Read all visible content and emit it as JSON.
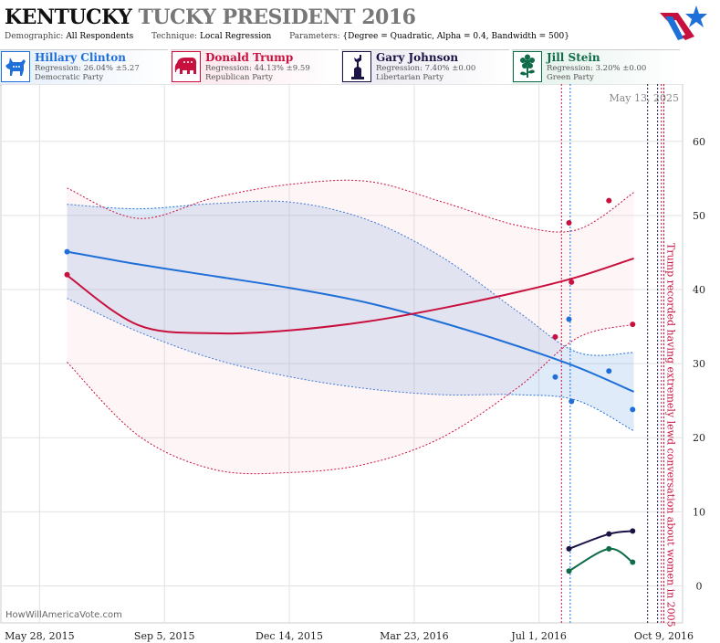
{
  "header": {
    "title_part1": "KENTUCKY",
    "title_part2": "TUCKY PRESIDENT 2016",
    "demographic_label": "Demographic:",
    "demographic_value": "All Respondents",
    "technique_label": "Technique:",
    "technique_value": "Local Regression",
    "parameters_label": "Parameters:",
    "parameters_value": "{Degree = Quadratic, Alpha = 0.4, Bandwidth = 500}"
  },
  "candidates": [
    {
      "name": "Hillary Clinton",
      "regression": "Regression: 26.04% ±5.27",
      "party": "Democratic Party",
      "color": "#1f6fd8",
      "bg": "#e4eefb",
      "icon": "donkey-icon"
    },
    {
      "name": "Donald Trump",
      "regression": "Regression: 44.13% ±9.59",
      "party": "Republican Party",
      "color": "#c8103e",
      "bg": "#fbe4ea",
      "icon": "elephant-icon"
    },
    {
      "name": "Gary Johnson",
      "regression": "Regression: 7.40% ±0.00",
      "party": "Libertarian Party",
      "color": "#1a1446",
      "bg": "#e8e8f0",
      "icon": "statue-of-liberty-icon"
    },
    {
      "name": "Jill Stein",
      "regression": "Regression: 3.20% ±0.00",
      "party": "Green Party",
      "color": "#0f6b48",
      "bg": "#e2f1ea",
      "icon": "flower-icon"
    }
  ],
  "footer": {
    "credit": "HowWillAmericaVote.com"
  },
  "chart_data": {
    "type": "line",
    "date_label": "May 13, 2025",
    "x_ticks": [
      "May 28, 2015",
      "Sep 5, 2015",
      "Dec 14, 2015",
      "Mar 23, 2016",
      "Jul 1, 2016",
      "Oct 9, 2016"
    ],
    "y_ticks": [
      0,
      10,
      20,
      30,
      40,
      50,
      60
    ],
    "ylim": [
      -5,
      67
    ],
    "xlim": [
      "2015-04-27",
      "2016-10-24"
    ],
    "grid": true,
    "annotation": "Trump recorded having extremely lewd conversation about women in 2005",
    "annotation_date": "2016-10-07",
    "event_lines": [
      {
        "x": "2016-07-19",
        "color": "#c8103e"
      },
      {
        "x": "2016-07-26",
        "color": "#1f6fd8"
      },
      {
        "x": "2016-09-26",
        "color": "#1a1446"
      },
      {
        "x": "2016-10-04",
        "color": "#1a1446"
      },
      {
        "x": "2016-10-07",
        "color": "#c8103e"
      },
      {
        "x": "2016-10-09",
        "color": "#c8103e"
      }
    ],
    "series": [
      {
        "name": "Hillary Clinton",
        "color": "#1f6fd8",
        "band_color": "#1f6fd8",
        "x": [
          "2015-06-19",
          "2015-08-15",
          "2015-10-15",
          "2015-12-15",
          "2016-02-15",
          "2016-04-15",
          "2016-06-15",
          "2016-08-01",
          "2016-09-15"
        ],
        "y": [
          45.1,
          43.4,
          41.8,
          40.2,
          38.2,
          35.5,
          32.3,
          29.5,
          26.2
        ],
        "lower": [
          38.8,
          34.3,
          30.6,
          28.2,
          26.6,
          25.8,
          25.8,
          25.0,
          20.9
        ],
        "upper": [
          51.5,
          50.9,
          51.6,
          51.8,
          49.4,
          44.3,
          36.9,
          31.5,
          31.5
        ],
        "points": [
          [
            "2015-06-19",
            45.1
          ],
          [
            "2016-07-14",
            28.2
          ],
          [
            "2016-07-25",
            36.0
          ],
          [
            "2016-07-27",
            24.9
          ],
          [
            "2016-08-26",
            29.0
          ],
          [
            "2016-09-14",
            23.8
          ]
        ]
      },
      {
        "name": "Donald Trump",
        "color": "#c8103e",
        "band_color": "#f7b6c6",
        "x": [
          "2015-06-19",
          "2015-08-15",
          "2015-10-15",
          "2015-12-15",
          "2016-02-15",
          "2016-04-15",
          "2016-06-15",
          "2016-08-01",
          "2016-09-15"
        ],
        "y": [
          41.9,
          35.2,
          34.1,
          34.5,
          35.7,
          37.5,
          39.7,
          41.7,
          44.2
        ],
        "lower": [
          30.2,
          20.3,
          15.7,
          15.3,
          16.5,
          20.1,
          26.9,
          33.5,
          35.3
        ],
        "upper": [
          53.7,
          49.6,
          52.4,
          54.2,
          54.6,
          51.8,
          48.6,
          48.1,
          53.1
        ],
        "points": [
          [
            "2015-06-19",
            42.0
          ],
          [
            "2016-07-14",
            33.6
          ],
          [
            "2016-07-25",
            49.0
          ],
          [
            "2016-07-27",
            41.0
          ],
          [
            "2016-08-26",
            52.0
          ],
          [
            "2016-09-14",
            35.3
          ]
        ]
      },
      {
        "name": "Gary Johnson",
        "color": "#1a1446",
        "x": [
          "2016-07-25",
          "2016-08-26",
          "2016-09-14"
        ],
        "y": [
          5.0,
          7.0,
          7.4
        ],
        "points": [
          [
            "2016-07-25",
            5.0
          ],
          [
            "2016-08-26",
            7.0
          ],
          [
            "2016-09-14",
            7.4
          ]
        ]
      },
      {
        "name": "Jill Stein",
        "color": "#0f6b48",
        "x": [
          "2016-07-25",
          "2016-08-26",
          "2016-09-14"
        ],
        "y": [
          2.0,
          5.0,
          3.2
        ],
        "points": [
          [
            "2016-07-25",
            2.0
          ],
          [
            "2016-08-26",
            5.0
          ],
          [
            "2016-09-14",
            3.2
          ]
        ]
      }
    ]
  }
}
